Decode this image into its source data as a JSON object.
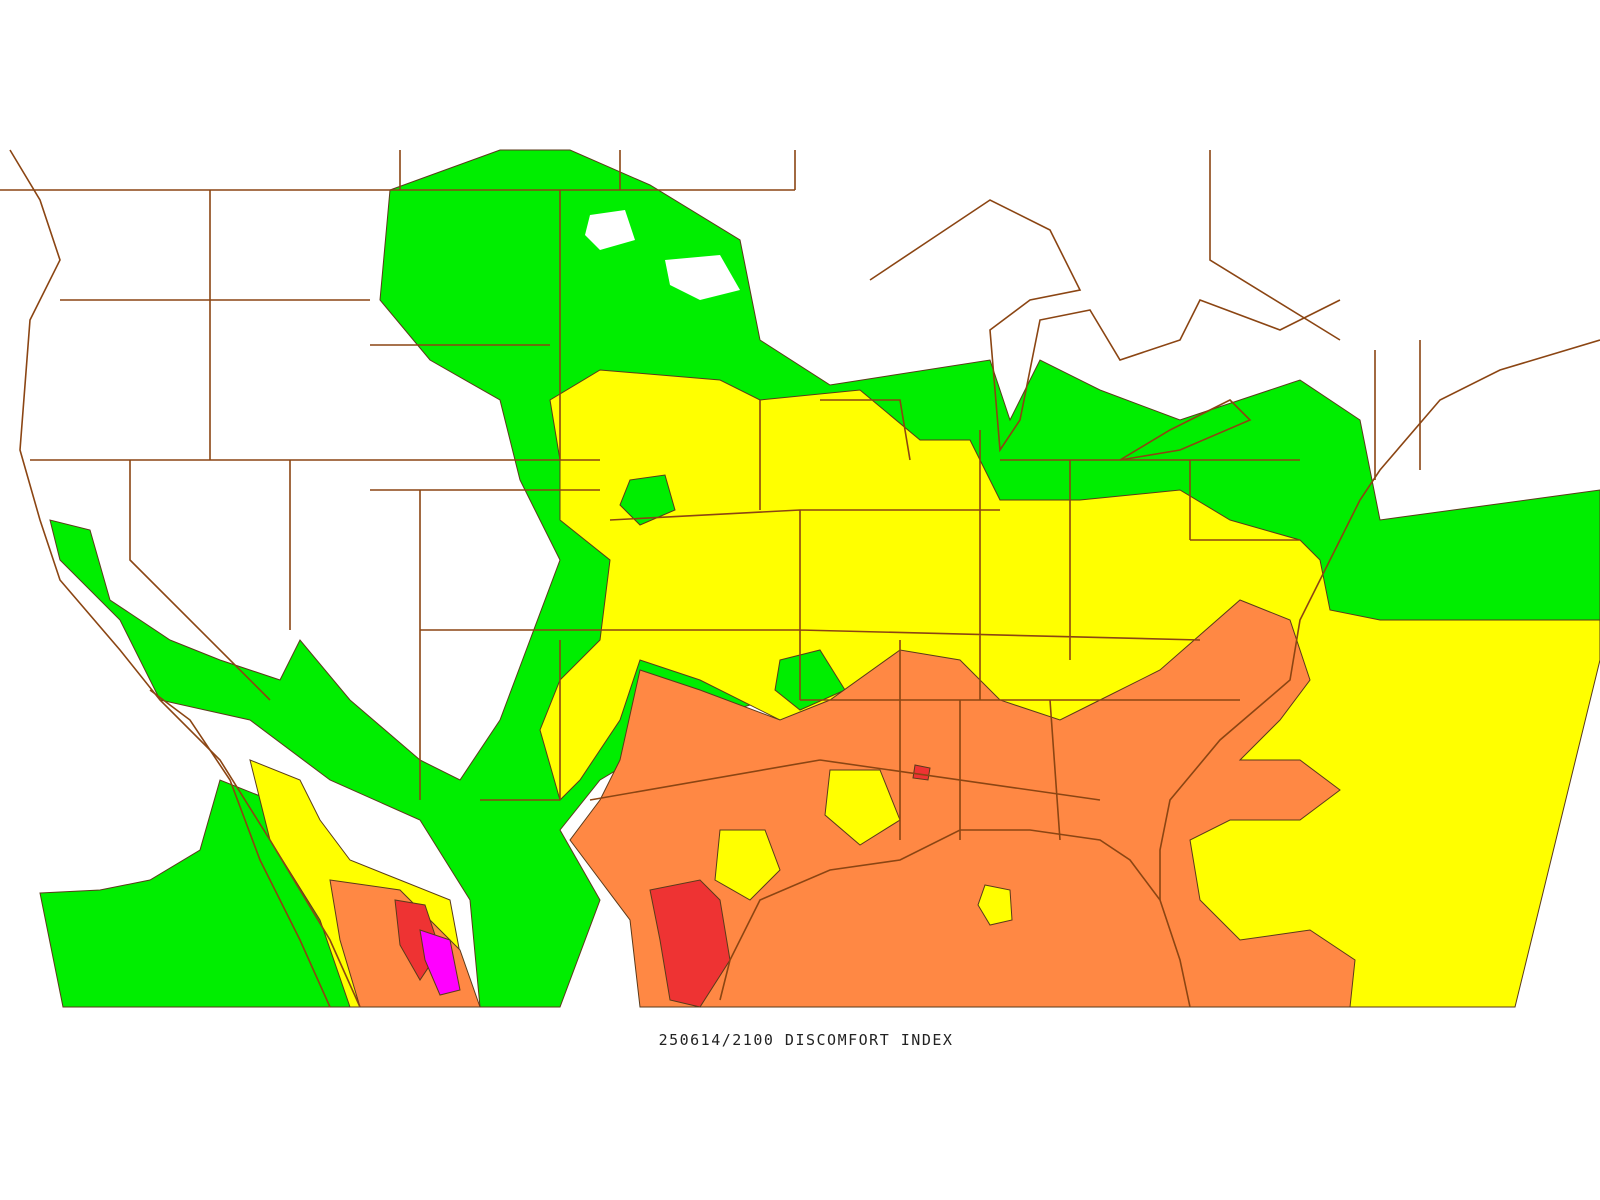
{
  "caption": "250614/2100 DISCOMFORT INDEX"
}
